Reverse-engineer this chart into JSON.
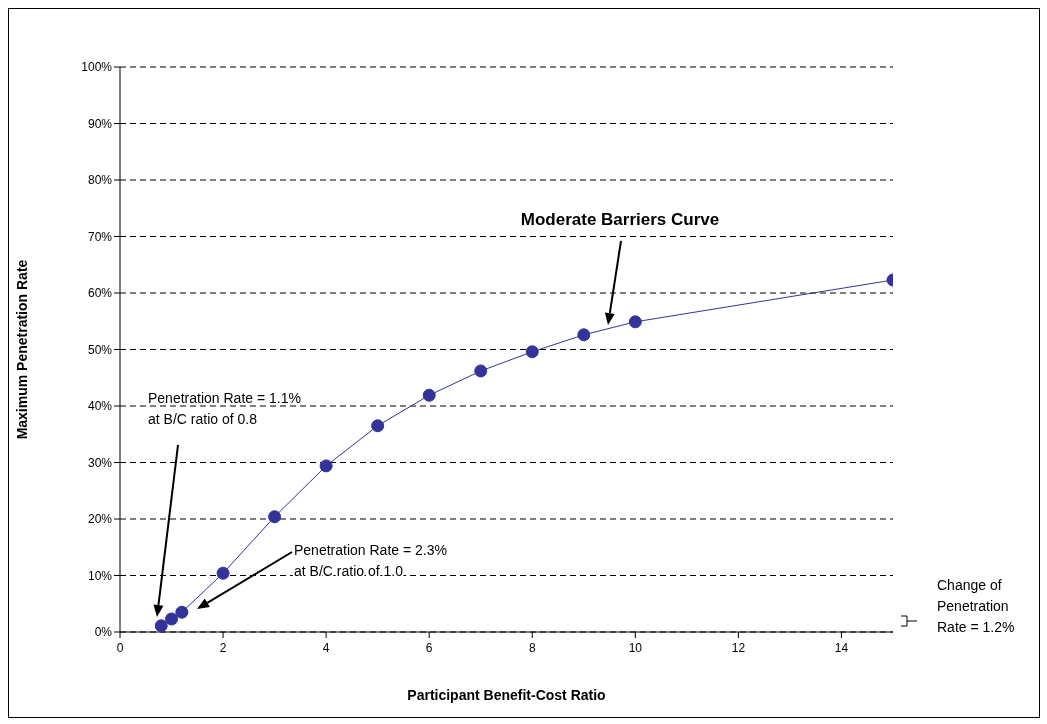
{
  "chart_data": {
    "type": "line",
    "xlabel": "Participant Benefit-Cost Ratio",
    "ylabel": "Maximum Penetration Rate",
    "x": [
      0.8,
      1.0,
      1.2,
      2,
      3,
      4,
      5,
      6,
      7,
      8,
      9,
      10,
      15
    ],
    "series": [
      {
        "color": "#333399",
        "values": [
          1.1,
          2.3,
          3.5,
          10.4,
          20.4,
          29.4,
          36.5,
          41.9,
          46.2,
          49.6,
          52.6,
          54.9,
          62.3
        ]
      }
    ],
    "xlim": [
      0,
      15
    ],
    "xticks": [
      0,
      2,
      4,
      6,
      8,
      10,
      12,
      14
    ],
    "ylim": [
      0,
      100
    ],
    "yticks": [
      {
        "value": 0,
        "label": "0%"
      },
      {
        "value": 10,
        "label": "10%"
      },
      {
        "value": 20,
        "label": "20%"
      },
      {
        "value": 30,
        "label": "30%"
      },
      {
        "value": 40,
        "label": "40%"
      },
      {
        "value": 50,
        "label": "50%"
      },
      {
        "value": 60,
        "label": "60%"
      },
      {
        "value": 70,
        "label": "70%"
      },
      {
        "value": 80,
        "label": "80%"
      },
      {
        "value": 90,
        "label": "90%"
      },
      {
        "value": 100,
        "label": "100%"
      }
    ],
    "grid": "y",
    "marker": "circle",
    "line_style": "solid",
    "legend": false,
    "annotations": [
      "Moderate Barriers Curve",
      "Penetration Rate = 1.1%\nat B/C ratio of 0.8",
      "Penetration Rate = 2.3%\nat B/C ratio of 1.0",
      "Change of\nPenetration\nRate = 1.2%"
    ]
  }
}
